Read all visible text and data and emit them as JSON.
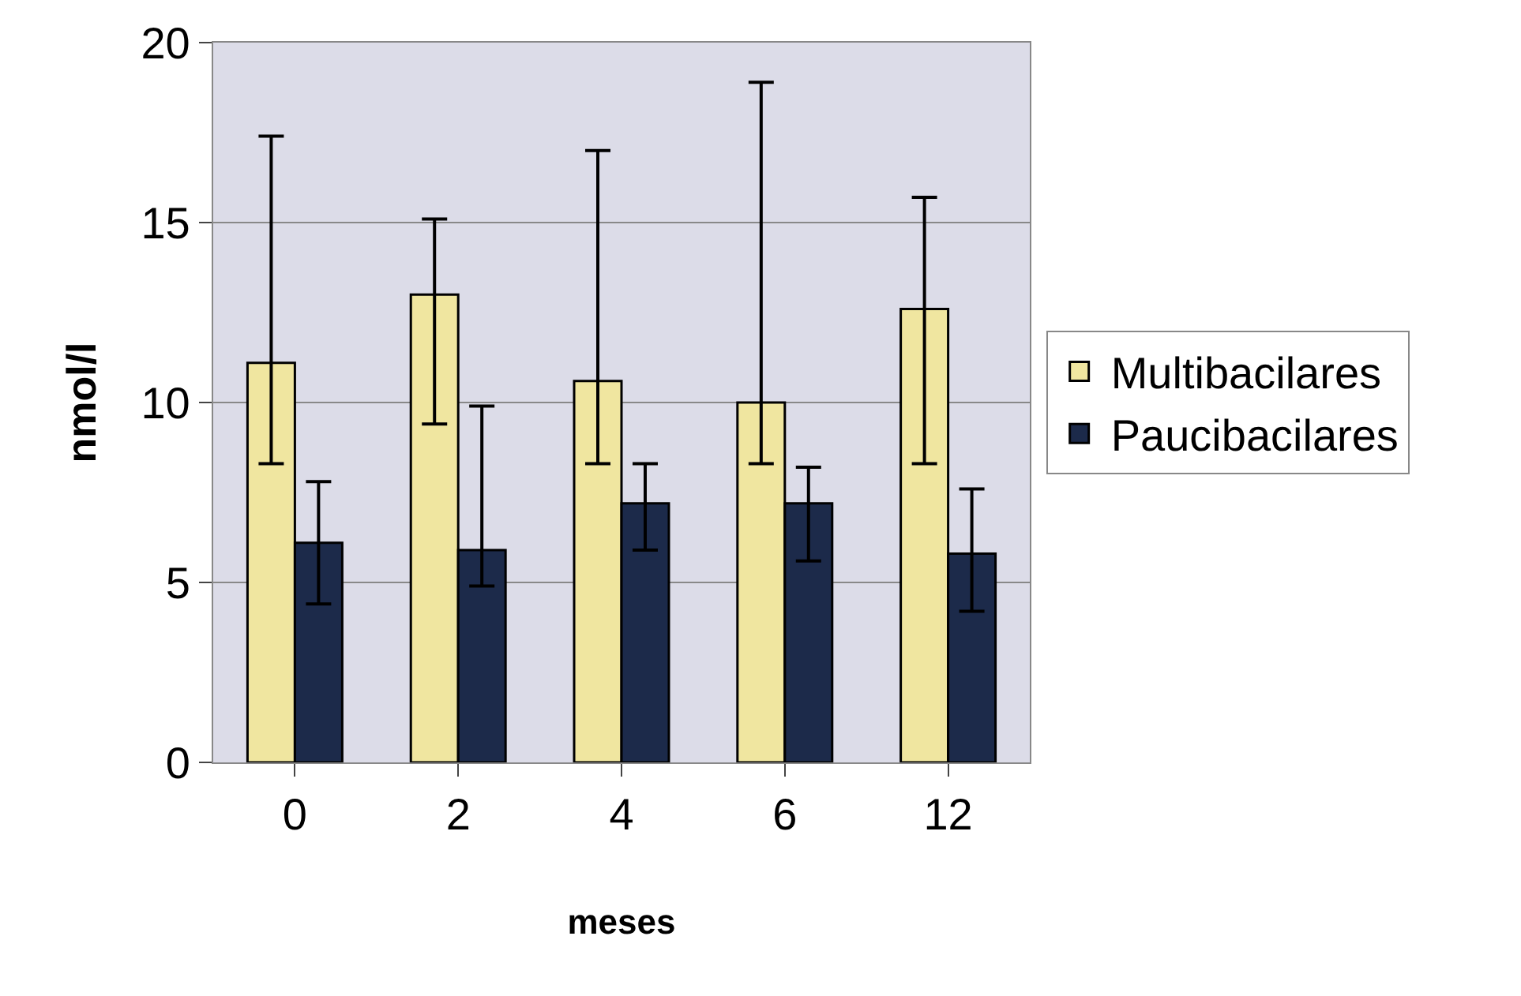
{
  "chart_data": {
    "type": "bar",
    "xlabel": "meses",
    "ylabel": "nmol/l",
    "categories": [
      "0",
      "2",
      "4",
      "6",
      "12"
    ],
    "series": [
      {
        "name": "Multibacilares",
        "color": "#f0e6a0",
        "values": [
          11.1,
          13.0,
          10.6,
          10.0,
          12.6
        ],
        "errors": [
          [
            8.3,
            17.4
          ],
          [
            9.4,
            15.1
          ],
          [
            8.3,
            17.0
          ],
          [
            8.3,
            18.9
          ],
          [
            8.3,
            15.7
          ]
        ]
      },
      {
        "name": "Paucibacilares",
        "color": "#1c2a4a",
        "values": [
          6.1,
          5.9,
          7.2,
          7.2,
          5.8
        ],
        "errors": [
          [
            4.4,
            7.8
          ],
          [
            4.9,
            9.9
          ],
          [
            5.9,
            8.3
          ],
          [
            5.6,
            8.2
          ],
          [
            4.2,
            7.6
          ]
        ]
      }
    ],
    "ylim": [
      0,
      20
    ],
    "yticks": [
      0,
      5,
      10,
      15,
      20
    ],
    "grid": "y",
    "legend": "right"
  }
}
